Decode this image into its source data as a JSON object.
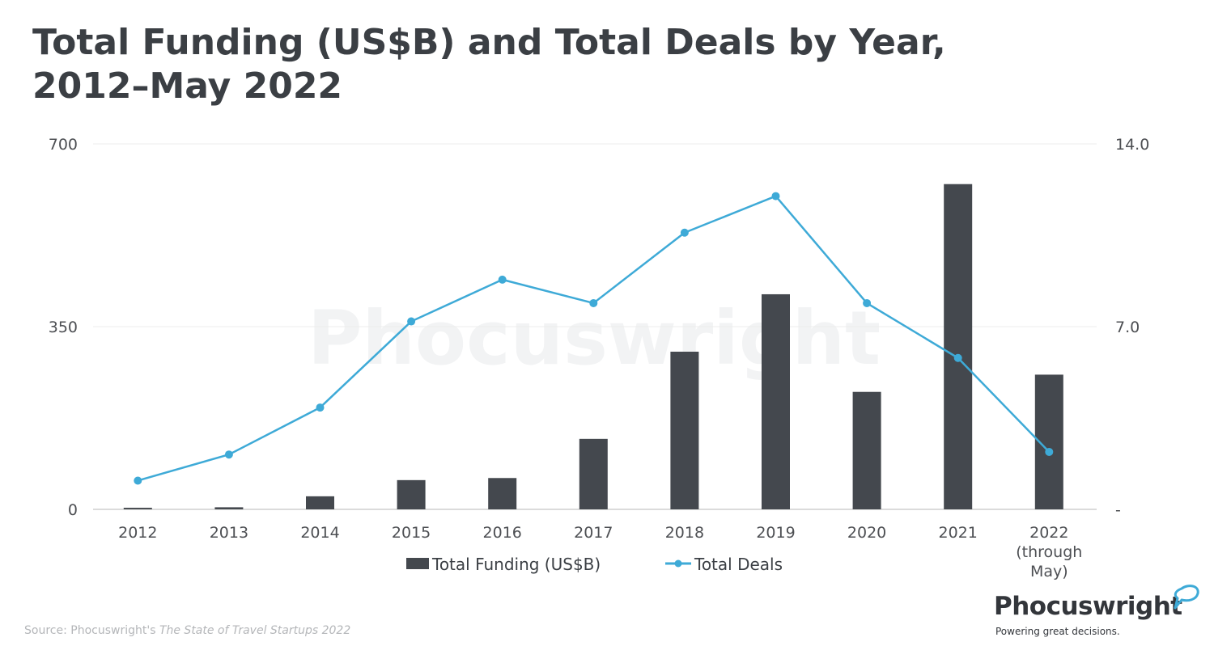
{
  "title": "Total Funding (US$B) and Total Deals by Year, 2012–May 2022",
  "chart_data": {
    "type": "bar",
    "categories": [
      "2012",
      "2013",
      "2014",
      "2015",
      "2016",
      "2017",
      "2018",
      "2019",
      "2020",
      "2021",
      "2022"
    ],
    "category_labels": [
      "2012",
      "2013",
      "2014",
      "2015",
      "2016",
      "2017",
      "2018",
      "2019",
      "2020",
      "2021",
      "2022\n(through\nMay)"
    ],
    "series": [
      {
        "name": "Total Funding (US$B)",
        "type": "bar",
        "axis": "left",
        "color": "#44484e",
        "values": [
          3,
          4,
          25,
          56,
          60,
          135,
          302,
          412,
          225,
          623,
          258
        ]
      },
      {
        "name": "Total Deals",
        "type": "line",
        "axis": "right",
        "color": "#3eaad7",
        "values": [
          1.1,
          2.1,
          3.9,
          7.2,
          8.8,
          7.9,
          10.6,
          12.0,
          7.9,
          5.8,
          2.2
        ]
      }
    ],
    "left_axis": {
      "ylim": [
        0,
        700
      ],
      "ticks": [
        "0",
        "350",
        "700"
      ]
    },
    "right_axis": {
      "ylim": [
        0,
        14
      ],
      "ticks": [
        "-",
        "7.0",
        "14.0"
      ]
    },
    "grid": true,
    "legend_position": "bottom"
  },
  "watermark": "Phocuswright",
  "source": {
    "prefix": "Source: Phocuswright's ",
    "publication": "The State of Travel Startups 2022"
  },
  "logo": {
    "name": "Phocuswright",
    "tagline": "Powering great decisions."
  }
}
